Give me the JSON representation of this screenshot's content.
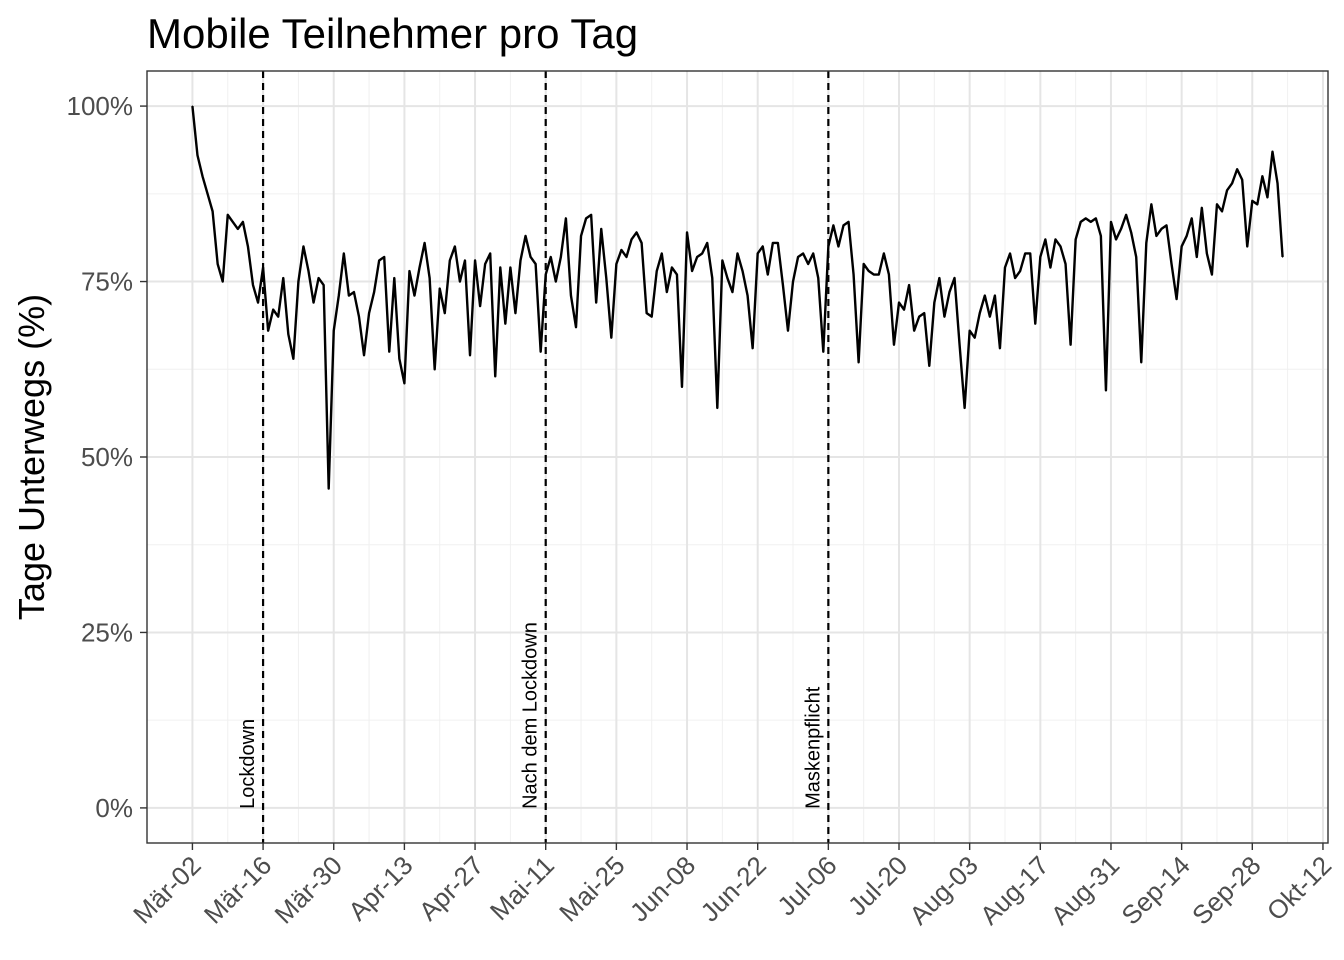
{
  "chart_data": {
    "type": "line",
    "title": "Mobile Teilnehmer pro Tag",
    "xlabel": "",
    "ylabel": "Tage Unterwegs (%)",
    "x_start": "2020-03-02",
    "x_ticks": [
      {
        "date": "2020-03-02",
        "label": "Mär-02"
      },
      {
        "date": "2020-03-16",
        "label": "Mär-16"
      },
      {
        "date": "2020-03-30",
        "label": "Mär-30"
      },
      {
        "date": "2020-04-13",
        "label": "Apr-13"
      },
      {
        "date": "2020-04-27",
        "label": "Apr-27"
      },
      {
        "date": "2020-05-11",
        "label": "Mai-11"
      },
      {
        "date": "2020-05-25",
        "label": "Mai-25"
      },
      {
        "date": "2020-06-08",
        "label": "Jun-08"
      },
      {
        "date": "2020-06-22",
        "label": "Jun-22"
      },
      {
        "date": "2020-07-06",
        "label": "Jul-06"
      },
      {
        "date": "2020-07-20",
        "label": "Jul-20"
      },
      {
        "date": "2020-08-03",
        "label": "Aug-03"
      },
      {
        "date": "2020-08-17",
        "label": "Aug-17"
      },
      {
        "date": "2020-08-31",
        "label": "Aug-31"
      },
      {
        "date": "2020-09-14",
        "label": "Sep-14"
      },
      {
        "date": "2020-09-28",
        "label": "Sep-28"
      },
      {
        "date": "2020-10-12",
        "label": "Okt-12"
      }
    ],
    "y_ticks": [
      {
        "value": 0,
        "label": "0%"
      },
      {
        "value": 25,
        "label": "25%"
      },
      {
        "value": 50,
        "label": "50%"
      },
      {
        "value": 75,
        "label": "75%"
      },
      {
        "value": 100,
        "label": "100%"
      }
    ],
    "ylim": [
      -5,
      105
    ],
    "xlim": [
      "2020-02-22",
      "2020-10-13"
    ],
    "grid": true,
    "events": [
      {
        "date": "2020-03-16",
        "label": "Lockdown"
      },
      {
        "date": "2020-05-11",
        "label": "Nach dem Lockdown"
      },
      {
        "date": "2020-07-06",
        "label": "Maskenpflicht"
      }
    ],
    "series": [
      {
        "color": "#000000",
        "values": [
          100,
          93,
          90,
          87.5,
          85,
          77.5,
          75,
          84.5,
          83.5,
          82.5,
          83.5,
          80,
          74.5,
          72,
          77,
          68,
          71,
          70,
          75.5,
          67.5,
          64,
          75,
          80,
          76.5,
          72,
          75.5,
          74.5,
          45.5,
          68,
          73,
          79,
          73,
          73.5,
          70,
          64.5,
          70.5,
          73.5,
          78,
          78.5,
          65,
          75.5,
          64,
          60.5,
          76.5,
          73,
          77,
          80.5,
          75.5,
          62.5,
          74,
          70.5,
          78,
          80,
          75,
          78,
          64.5,
          78,
          71.5,
          77.5,
          79,
          61.5,
          77,
          69,
          77,
          70.5,
          78,
          81.5,
          78.5,
          77.5,
          65,
          76,
          78.5,
          75,
          78.5,
          84,
          73,
          68.5,
          81.5,
          84,
          84.5,
          72,
          82.5,
          75.5,
          67,
          77.5,
          79.5,
          78.5,
          81,
          82,
          80.5,
          70.5,
          70,
          76.5,
          79,
          73.5,
          77,
          76,
          60,
          82,
          76.5,
          78.5,
          79,
          80.5,
          75.5,
          57,
          78,
          75.5,
          73.5,
          79,
          76.5,
          73,
          65.5,
          79,
          80,
          76,
          80.5,
          80.5,
          74.5,
          68,
          75,
          78.5,
          79,
          77.5,
          79,
          75.5,
          65,
          80,
          83,
          80,
          83,
          83.5,
          76,
          63.5,
          77.5,
          76.5,
          76,
          76,
          79,
          76,
          66,
          72,
          71,
          74.5,
          68,
          70,
          70.5,
          63,
          72,
          75.5,
          70,
          73.5,
          75.5,
          66,
          57,
          68,
          67,
          70.5,
          73,
          70,
          73,
          65.5,
          77,
          79,
          75.5,
          76.5,
          79,
          79,
          69,
          78.5,
          81,
          77,
          81,
          80,
          77.5,
          66,
          81,
          83.5,
          84,
          83.5,
          84,
          81.5,
          59.5,
          83.5,
          81,
          82.5,
          84.5,
          82,
          78.5,
          63.5,
          80.5,
          86,
          81.5,
          82.5,
          83,
          77.5,
          72.5,
          80,
          81.5,
          84,
          78.5,
          85.5,
          79,
          76,
          86,
          85,
          88,
          89,
          91,
          89.5,
          80,
          86.5,
          86,
          90,
          87,
          93.5,
          89,
          78.5
        ]
      }
    ]
  }
}
